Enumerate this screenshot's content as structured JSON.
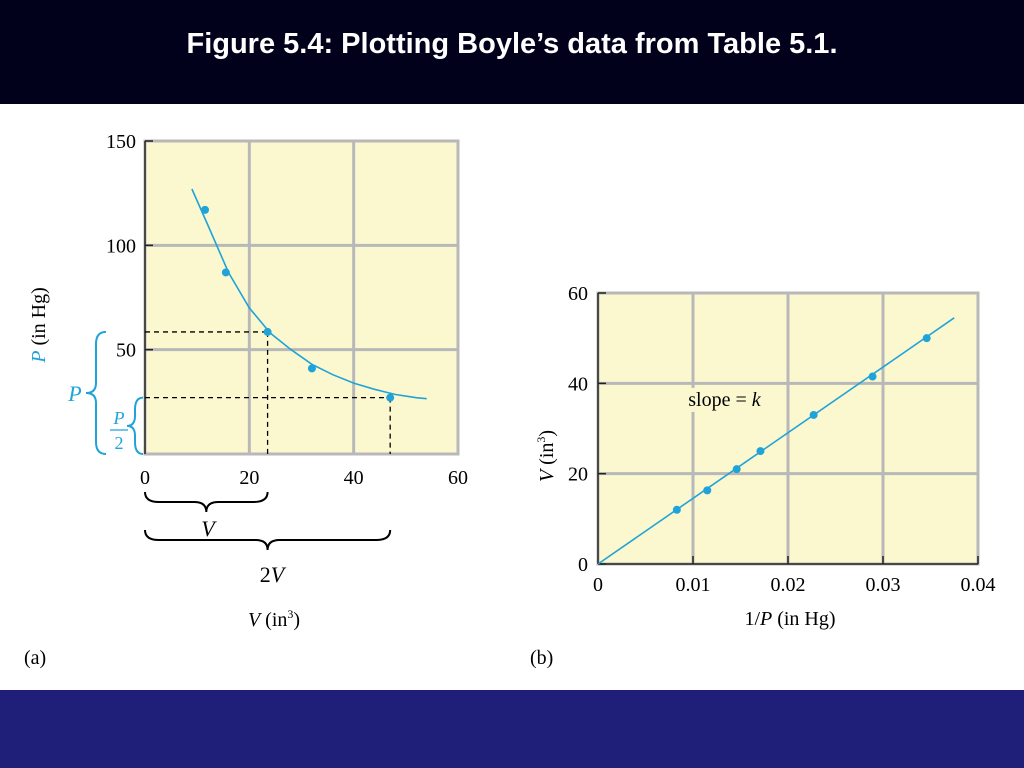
{
  "slide": {
    "title": "Figure 5.4:  Plotting Boyle’s data from Table 5.1.",
    "colors": {
      "title_bg": "#01011c",
      "footer_bg": "#1f1f7a",
      "plot_bg": "#fbf8d0",
      "grid": "#b8b8b8",
      "curve": "#1fa3d9"
    }
  },
  "chart_data": [
    {
      "type": "scatter",
      "panel_label": "(a)",
      "xlabel_var": "V",
      "xlabel_unit": "(in",
      "xlabel_sup": "3",
      "xlabel_close": ")",
      "ylabel_var": "P",
      "ylabel_unit": "(in Hg)",
      "xlim": [
        0,
        60
      ],
      "ylim": [
        0,
        150
      ],
      "x_ticks": [
        "0",
        "20",
        "40",
        "60"
      ],
      "y_ticks": [
        "50",
        "100",
        "150"
      ],
      "grid": true,
      "series": [
        {
          "x": [
            11.5,
            15.5,
            23.5,
            32.0,
            47.0
          ],
          "y": [
            117,
            87,
            58.5,
            41,
            27
          ]
        }
      ],
      "curve": {
        "x": [
          9,
          12,
          16,
          20,
          24,
          28,
          32,
          36,
          40,
          44,
          48,
          52,
          54
        ],
        "y": [
          127,
          110,
          87,
          70,
          58,
          50,
          43,
          38,
          34,
          31,
          28.5,
          27,
          26.5
        ]
      },
      "annotations": {
        "brace_v": "V",
        "brace_2v": "2V",
        "brace_p": "P",
        "brace_p_half_num": "P",
        "brace_p_half_den": "2",
        "ref_v": 23.5,
        "ref_2v": 47,
        "ref_p": 58.5,
        "ref_p_half": 27
      }
    },
    {
      "type": "line",
      "panel_label": "(b)",
      "xlabel_pre": "1/",
      "xlabel_var": "P",
      "xlabel_unit": "(in Hg)",
      "ylabel_var": "V",
      "ylabel_unit": "(in",
      "ylabel_sup": "3",
      "ylabel_close": ")",
      "xlim": [
        0,
        0.04
      ],
      "ylim": [
        0,
        60
      ],
      "x_ticks": [
        "0",
        "0.01",
        "0.02",
        "0.03",
        "0.04"
      ],
      "y_ticks": [
        "0",
        "20",
        "40",
        "60"
      ],
      "grid": true,
      "series": [
        {
          "x": [
            0.0083,
            0.0115,
            0.0146,
            0.0171,
            0.0227,
            0.0289,
            0.0346
          ],
          "y": [
            12,
            16.3,
            21,
            25,
            33,
            41.5,
            50
          ]
        }
      ],
      "fit_line": {
        "x": [
          0,
          0.0375
        ],
        "y": [
          0,
          54.5
        ]
      },
      "annotation_text": "slope = ",
      "annotation_var": "k",
      "annotation_at": {
        "x": 0.0095,
        "y": 35
      }
    }
  ]
}
